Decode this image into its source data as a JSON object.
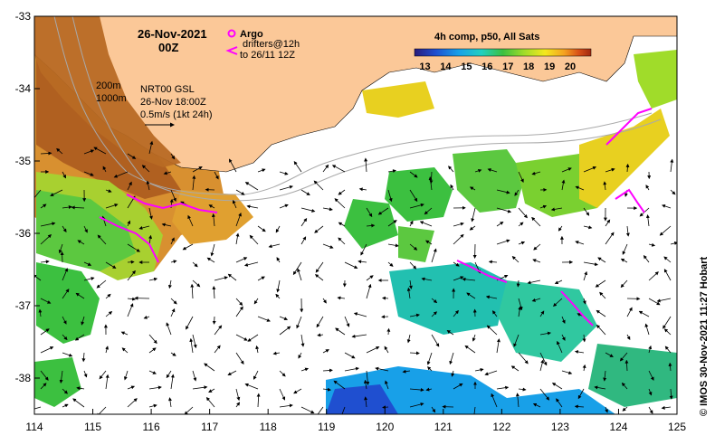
{
  "header": {
    "date": "26-Nov-2021",
    "time": "00Z",
    "argo_label": "Argo",
    "drifters_line1": "drifters@12h",
    "drifters_line2": "to 26/11 12Z"
  },
  "colorbar": {
    "title": "4h comp, p50, All Sats",
    "ticks": [
      "13",
      "14",
      "15",
      "16",
      "17",
      "18",
      "19",
      "20"
    ],
    "range": [
      12.5,
      21.0
    ],
    "colors": [
      "#2a1b7a",
      "#1f4fd0",
      "#18a0e8",
      "#22d0c0",
      "#3cc040",
      "#a0dc2a",
      "#f4e81e",
      "#f4a020",
      "#d85018",
      "#a02810"
    ]
  },
  "annotations": {
    "isobath_200": "200m",
    "isobath_1000": "1000m",
    "velocity_line1": "NRT00 GSL",
    "velocity_line2": "26-Nov 18:00Z",
    "velocity_line3": "0.5m/s (1kt 24h)"
  },
  "axes": {
    "lon_ticks": [
      "114",
      "115",
      "116",
      "117",
      "118",
      "119",
      "120",
      "121",
      "122",
      "123",
      "124",
      "125"
    ],
    "lat_ticks": [
      "-33",
      "-34",
      "-35",
      "-36",
      "-37",
      "-38"
    ],
    "lon_range": [
      114,
      125
    ],
    "lat_range": [
      -33,
      -38.5
    ]
  },
  "credit": "© IMOS 30-Nov-2021 11:27 Hobart",
  "colors": {
    "land": "#fbc898",
    "argo": "#ff00ff",
    "isobath": "#a9a9a9"
  }
}
